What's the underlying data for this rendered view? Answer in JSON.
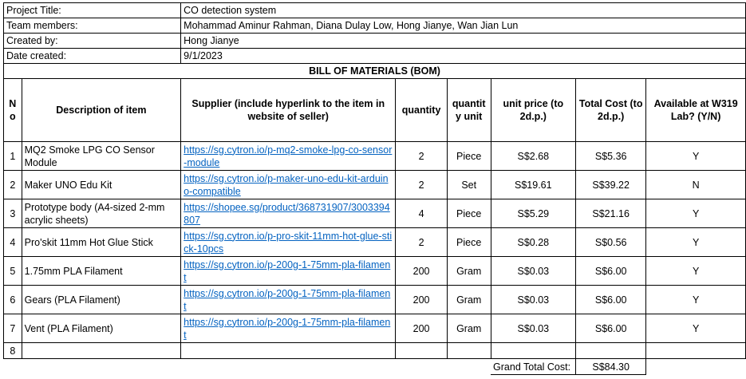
{
  "project": {
    "rows": [
      {
        "label": "Project Title:",
        "value": "CO detection system"
      },
      {
        "label": "Team members:",
        "value": "Mohammad Aminur Rahman, Diana Dulay Low, Hong Jianye, Wan Jian Lun"
      },
      {
        "label": "Created by:",
        "value": "Hong Jianye"
      },
      {
        "label": "Date created:",
        "value": "9/1/2023"
      }
    ]
  },
  "bom": {
    "title": "BILL OF MATERIALS (BOM)",
    "headers": {
      "no": "N o",
      "description": "Description of item",
      "supplier": "Supplier (include hyperlink to the item in website of seller)",
      "quantity": "quantity",
      "unit": "quantit y unit",
      "unit_price": "unit price (to 2d.p.)",
      "total_cost": "Total Cost (to 2d.p.)",
      "available": "Available at W319 Lab? (Y/N)"
    },
    "items": [
      {
        "no": "1",
        "description": "MQ2 Smoke LPG CO Sensor Module",
        "link": "https://sg.cytron.io/p-mq2-smoke-lpg-co-sensor-module",
        "quantity": "2",
        "unit": "Piece",
        "unit_price": "S$2.68",
        "total": "S$5.36",
        "available": "Y"
      },
      {
        "no": "2",
        "description": "Maker UNO Edu Kit",
        "link": "https://sg.cytron.io/p-maker-uno-edu-kit-arduino-compatible",
        "quantity": "2",
        "unit": "Set",
        "unit_price": "S$19.61",
        "total": "S$39.22",
        "available": "N"
      },
      {
        "no": "3",
        "description": "Prototype body (A4-sized 2-mm acrylic sheets)",
        "link": "https://shopee.sg/product/368731907/3003394807",
        "quantity": "4",
        "unit": "Piece",
        "unit_price": "S$5.29",
        "total": "S$21.16",
        "available": "Y"
      },
      {
        "no": "4",
        "description": "Pro'skit 11mm Hot Glue Stick",
        "link": "https://sg.cytron.io/p-pro-skit-11mm-hot-glue-stick-10pcs",
        "quantity": "2",
        "unit": "Piece",
        "unit_price": "S$0.28",
        "total": "S$0.56",
        "available": "Y"
      },
      {
        "no": "5",
        "description": "1.75mm PLA Filament",
        "link": "https://sg.cytron.io/p-200g-1-75mm-pla-filament",
        "quantity": "200",
        "unit": "Gram",
        "unit_price": "S$0.03",
        "total": "S$6.00",
        "available": "Y"
      },
      {
        "no": "6",
        "description": "Gears (PLA Filament)",
        "link": "https://sg.cytron.io/p-200g-1-75mm-pla-filament",
        "quantity": "200",
        "unit": "Gram",
        "unit_price": "S$0.03",
        "total": "S$6.00",
        "available": "Y"
      },
      {
        "no": "7",
        "description": "Vent (PLA Filament)",
        "link": "https://sg.cytron.io/p-200g-1-75mm-pla-filament",
        "quantity": "200",
        "unit": "Gram",
        "unit_price": "S$0.03",
        "total": "S$6.00",
        "available": "Y"
      },
      {
        "no": "8",
        "description": "",
        "link": "",
        "quantity": "",
        "unit": "",
        "unit_price": "",
        "total": "",
        "available": ""
      }
    ],
    "grand_total_label": "Grand Total Cost:",
    "grand_total_value": "S$84.30"
  }
}
